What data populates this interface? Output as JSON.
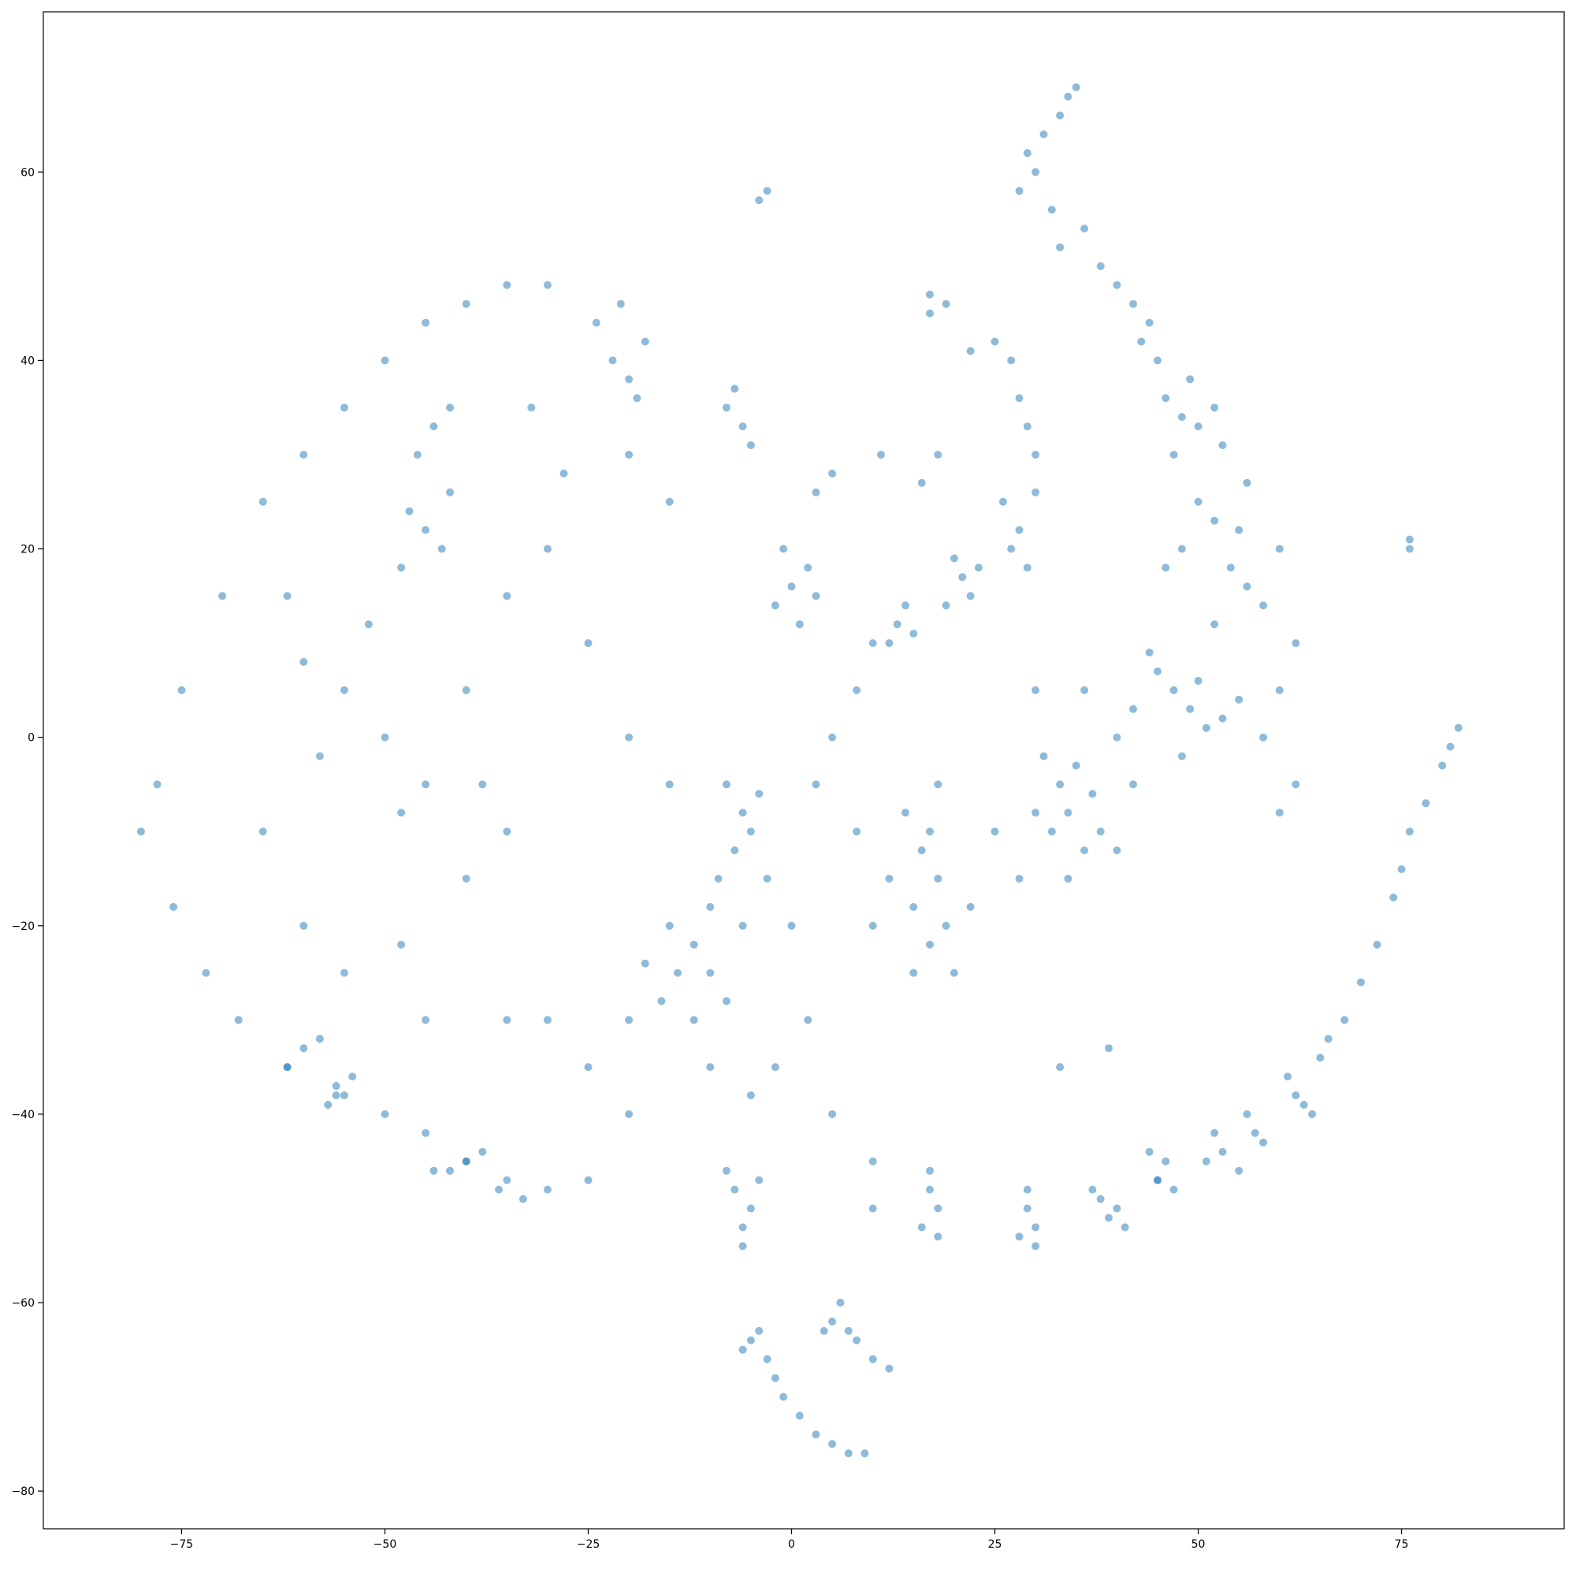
{
  "chart_data": {
    "type": "scatter",
    "title": "",
    "xlabel": "",
    "ylabel": "",
    "xlim": [
      -92,
      95
    ],
    "ylim": [
      -84,
      77
    ],
    "xticks": [
      -75,
      -50,
      -25,
      0,
      25,
      50,
      75
    ],
    "yticks": [
      -80,
      -60,
      -40,
      -20,
      0,
      20,
      40,
      60
    ],
    "xtick_labels": [
      "−75",
      "−50",
      "−25",
      "0",
      "25",
      "50",
      "75"
    ],
    "ytick_labels": [
      "−80",
      "−60",
      "−40",
      "−20",
      "0",
      "20",
      "40",
      "60"
    ],
    "grid": false,
    "legend": "none",
    "marker_color": "#1f77b4",
    "marker_alpha": 0.5,
    "series": [
      {
        "points": [
          [
            -65,
            25
          ],
          [
            -60,
            30
          ],
          [
            -55,
            35
          ],
          [
            -50,
            40
          ],
          [
            -45,
            44
          ],
          [
            -40,
            46
          ],
          [
            -35,
            48
          ],
          [
            -30,
            48
          ],
          [
            -70,
            15
          ],
          [
            -75,
            5
          ],
          [
            -78,
            -5
          ],
          [
            -80,
            -10
          ],
          [
            -76,
            -18
          ],
          [
            -72,
            -25
          ],
          [
            -68,
            -30
          ],
          [
            -62,
            -35
          ],
          [
            -56,
            -38
          ],
          [
            -50,
            -40
          ],
          [
            -45,
            -42
          ],
          [
            -40,
            -45
          ],
          [
            -35,
            -47
          ],
          [
            -30,
            -48
          ],
          [
            -25,
            -47
          ],
          [
            -45,
            22
          ],
          [
            -47,
            24
          ],
          [
            -43,
            20
          ],
          [
            -48,
            18
          ],
          [
            -42,
            26
          ],
          [
            -44,
            33
          ],
          [
            -42,
            35
          ],
          [
            -46,
            30
          ],
          [
            -52,
            12
          ],
          [
            -55,
            5
          ],
          [
            -50,
            0
          ],
          [
            -45,
            -5
          ],
          [
            -48,
            -8
          ],
          [
            -58,
            -2
          ],
          [
            -60,
            8
          ],
          [
            -62,
            15
          ],
          [
            -65,
            -10
          ],
          [
            -60,
            -20
          ],
          [
            -55,
            -25
          ],
          [
            -48,
            -22
          ],
          [
            -40,
            -15
          ],
          [
            -35,
            -10
          ],
          [
            -38,
            -5
          ],
          [
            -40,
            5
          ],
          [
            -35,
            15
          ],
          [
            -30,
            20
          ],
          [
            -28,
            28
          ],
          [
            -32,
            35
          ],
          [
            -20,
            30
          ],
          [
            -15,
            25
          ],
          [
            -25,
            10
          ],
          [
            -20,
            0
          ],
          [
            -15,
            -5
          ],
          [
            -30,
            -30
          ],
          [
            -25,
            -35
          ],
          [
            -20,
            -40
          ],
          [
            -35,
            -30
          ],
          [
            -45,
            -30
          ],
          [
            -60,
            -33
          ],
          [
            -62,
            -35
          ],
          [
            -58,
            -32
          ],
          [
            -56,
            -37
          ],
          [
            -55,
            -38
          ],
          [
            -54,
            -36
          ],
          [
            -57,
            -39
          ],
          [
            -22,
            40
          ],
          [
            -20,
            38
          ],
          [
            -18,
            42
          ],
          [
            -24,
            44
          ],
          [
            -19,
            36
          ],
          [
            -21,
            46
          ],
          [
            -8,
            35
          ],
          [
            -6,
            33
          ],
          [
            -7,
            37
          ],
          [
            -5,
            31
          ],
          [
            -8,
            -5
          ],
          [
            -6,
            -8
          ],
          [
            -5,
            -10
          ],
          [
            -7,
            -12
          ],
          [
            -9,
            -15
          ],
          [
            -4,
            -6
          ],
          [
            -10,
            -18
          ],
          [
            -12,
            -22
          ],
          [
            -14,
            -25
          ],
          [
            -10,
            -25
          ],
          [
            -15,
            -20
          ],
          [
            -8,
            -28
          ],
          [
            -12,
            -30
          ],
          [
            -16,
            -28
          ],
          [
            -6,
            -20
          ],
          [
            -3,
            -15
          ],
          [
            -18,
            -24
          ],
          [
            -20,
            -30
          ],
          [
            -10,
            -35
          ],
          [
            -5,
            -38
          ],
          [
            -7,
            -48
          ],
          [
            -5,
            -50
          ],
          [
            -6,
            -52
          ],
          [
            -4,
            -47
          ],
          [
            -8,
            -46
          ],
          [
            -6,
            -54
          ],
          [
            0,
            16
          ],
          [
            2,
            18
          ],
          [
            -2,
            14
          ],
          [
            1,
            12
          ],
          [
            3,
            15
          ],
          [
            -1,
            20
          ],
          [
            5,
            28
          ],
          [
            3,
            26
          ],
          [
            13,
            12
          ],
          [
            14,
            14
          ],
          [
            12,
            10
          ],
          [
            15,
            11
          ],
          [
            11,
            30
          ],
          [
            16,
            27
          ],
          [
            18,
            30
          ],
          [
            17,
            -10
          ],
          [
            16,
            -12
          ],
          [
            18,
            -15
          ],
          [
            15,
            -18
          ],
          [
            19,
            -20
          ],
          [
            17,
            -22
          ],
          [
            20,
            -25
          ],
          [
            15,
            -25
          ],
          [
            18,
            -5
          ],
          [
            14,
            -8
          ],
          [
            22,
            -18
          ],
          [
            12,
            -15
          ],
          [
            10,
            -20
          ],
          [
            8,
            -10
          ],
          [
            5,
            0
          ],
          [
            8,
            5
          ],
          [
            10,
            10
          ],
          [
            3,
            -5
          ],
          [
            0,
            -20
          ],
          [
            2,
            -30
          ],
          [
            -2,
            -35
          ],
          [
            5,
            -40
          ],
          [
            10,
            -45
          ],
          [
            17,
            -48
          ],
          [
            18,
            -50
          ],
          [
            16,
            -52
          ],
          [
            18,
            -53
          ],
          [
            17,
            -46
          ],
          [
            21,
            17
          ],
          [
            20,
            19
          ],
          [
            22,
            15
          ],
          [
            19,
            14
          ],
          [
            23,
            18
          ],
          [
            27,
            20
          ],
          [
            28,
            22
          ],
          [
            26,
            25
          ],
          [
            29,
            18
          ],
          [
            30,
            30
          ],
          [
            29,
            33
          ],
          [
            28,
            36
          ],
          [
            27,
            40
          ],
          [
            25,
            42
          ],
          [
            22,
            41
          ],
          [
            30,
            26
          ],
          [
            33,
            -5
          ],
          [
            34,
            -8
          ],
          [
            32,
            -10
          ],
          [
            35,
            -3
          ],
          [
            36,
            -12
          ],
          [
            31,
            -2
          ],
          [
            34,
            -15
          ],
          [
            37,
            -6
          ],
          [
            30,
            -8
          ],
          [
            38,
            -10
          ],
          [
            28,
            -15
          ],
          [
            40,
            -12
          ],
          [
            25,
            -10
          ],
          [
            30,
            5
          ],
          [
            36,
            5
          ],
          [
            40,
            0
          ],
          [
            42,
            -5
          ],
          [
            29,
            -50
          ],
          [
            30,
            -52
          ],
          [
            28,
            -53
          ],
          [
            29,
            -48
          ],
          [
            30,
            -54
          ],
          [
            38,
            -49
          ],
          [
            39,
            -51
          ],
          [
            37,
            -48
          ],
          [
            40,
            -50
          ],
          [
            41,
            -52
          ],
          [
            46,
            -45
          ],
          [
            45,
            -47
          ],
          [
            47,
            -48
          ],
          [
            44,
            -44
          ],
          [
            53,
            -44
          ],
          [
            52,
            -42
          ],
          [
            55,
            -46
          ],
          [
            51,
            -45
          ],
          [
            57,
            -42
          ],
          [
            56,
            -40
          ],
          [
            58,
            -43
          ],
          [
            62,
            -38
          ],
          [
            63,
            -39
          ],
          [
            64,
            -40
          ],
          [
            61,
            -36
          ],
          [
            65,
            -34
          ],
          [
            66,
            -32
          ],
          [
            68,
            -30
          ],
          [
            70,
            -26
          ],
          [
            72,
            -22
          ],
          [
            74,
            -17
          ],
          [
            75,
            -14
          ],
          [
            76,
            -10
          ],
          [
            78,
            -7
          ],
          [
            80,
            -3
          ],
          [
            81,
            -1
          ],
          [
            82,
            1
          ],
          [
            28,
            58
          ],
          [
            30,
            60
          ],
          [
            32,
            56
          ],
          [
            29,
            62
          ],
          [
            31,
            64
          ],
          [
            33,
            66
          ],
          [
            34,
            68
          ],
          [
            35,
            69
          ],
          [
            33,
            52
          ],
          [
            36,
            54
          ],
          [
            38,
            50
          ],
          [
            40,
            48
          ],
          [
            42,
            46
          ],
          [
            44,
            44
          ],
          [
            43,
            42
          ],
          [
            45,
            40
          ],
          [
            46,
            36
          ],
          [
            48,
            34
          ],
          [
            50,
            33
          ],
          [
            52,
            35
          ],
          [
            49,
            38
          ],
          [
            47,
            30
          ],
          [
            53,
            31
          ],
          [
            50,
            25
          ],
          [
            52,
            23
          ],
          [
            55,
            22
          ],
          [
            48,
            20
          ],
          [
            46,
            18
          ],
          [
            54,
            18
          ],
          [
            56,
            16
          ],
          [
            58,
            14
          ],
          [
            52,
            12
          ],
          [
            56,
            27
          ],
          [
            60,
            20
          ],
          [
            62,
            10
          ],
          [
            60,
            5
          ],
          [
            45,
            7
          ],
          [
            47,
            5
          ],
          [
            49,
            3
          ],
          [
            51,
            1
          ],
          [
            50,
            6
          ],
          [
            44,
            9
          ],
          [
            53,
            2
          ],
          [
            55,
            4
          ],
          [
            48,
            -2
          ],
          [
            42,
            3
          ],
          [
            58,
            0
          ],
          [
            62,
            -5
          ],
          [
            60,
            -8
          ],
          [
            -3,
            58
          ],
          [
            -4,
            57
          ],
          [
            17,
            47
          ],
          [
            17,
            45
          ],
          [
            19,
            46
          ],
          [
            76,
            21
          ],
          [
            76,
            20
          ],
          [
            -5,
            -64
          ],
          [
            -3,
            -66
          ],
          [
            -2,
            -68
          ],
          [
            -1,
            -70
          ],
          [
            1,
            -72
          ],
          [
            3,
            -74
          ],
          [
            5,
            -75
          ],
          [
            7,
            -76
          ],
          [
            9,
            -76
          ],
          [
            -4,
            -63
          ],
          [
            -6,
            -65
          ],
          [
            5,
            -62
          ],
          [
            7,
            -63
          ],
          [
            8,
            -64
          ],
          [
            10,
            -66
          ],
          [
            12,
            -67
          ],
          [
            6,
            -60
          ],
          [
            4,
            -63
          ],
          [
            -40,
            -45
          ],
          [
            -38,
            -44
          ],
          [
            -36,
            -48
          ],
          [
            -33,
            -49
          ],
          [
            -42,
            -46
          ],
          [
            -44,
            -46
          ],
          [
            33,
            -35
          ],
          [
            45,
            -47
          ],
          [
            39,
            -33
          ],
          [
            10,
            -50
          ]
        ]
      }
    ]
  }
}
